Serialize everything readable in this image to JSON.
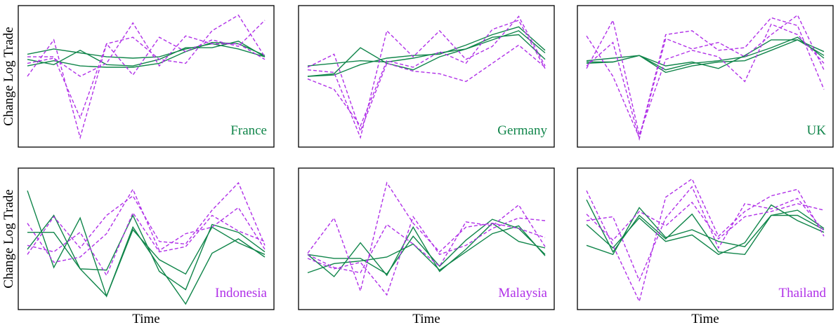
{
  "colors": {
    "solid": "#10854a",
    "dashed": "#b030e8",
    "frame": "#000000"
  },
  "chart_data": [
    {
      "type": "line",
      "country": "France",
      "label_color": "#10854a",
      "x": [
        0,
        1,
        2,
        3,
        4,
        5,
        6,
        7,
        8,
        9
      ],
      "ylabel": "Change Log Trade",
      "xlabel": "",
      "series": [
        {
          "style": "solid",
          "values": [
            0.58,
            0.62,
            0.58,
            0.57,
            0.57,
            0.6,
            0.69,
            0.76,
            0.75,
            0.66
          ]
        },
        {
          "style": "solid",
          "values": [
            0.63,
            0.59,
            0.7,
            0.59,
            0.58,
            0.63,
            0.72,
            0.72,
            0.77,
            0.65
          ]
        },
        {
          "style": "solid",
          "values": [
            0.67,
            0.71,
            0.68,
            0.65,
            0.64,
            0.65,
            0.71,
            0.75,
            0.71,
            0.65
          ]
        },
        {
          "style": "dashed",
          "values": [
            0.5,
            0.78,
            0.03,
            0.75,
            0.8,
            0.63,
            0.6,
            0.85,
            0.97,
            0.65
          ]
        },
        {
          "style": "dashed",
          "values": [
            0.6,
            0.64,
            0.5,
            0.6,
            0.91,
            0.58,
            0.81,
            0.75,
            0.75,
            0.63
          ]
        },
        {
          "style": "dashed",
          "values": [
            0.65,
            0.65,
            0.18,
            0.75,
            0.51,
            0.8,
            0.69,
            0.78,
            0.73,
            0.93
          ]
        }
      ]
    },
    {
      "type": "line",
      "country": "Germany",
      "label_color": "#10854a",
      "x": [
        0,
        1,
        2,
        3,
        4,
        5,
        6,
        7,
        8,
        9
      ],
      "ylabel": "",
      "xlabel": "",
      "series": [
        {
          "style": "solid",
          "values": [
            0.5,
            0.52,
            0.72,
            0.6,
            0.55,
            0.65,
            0.71,
            0.78,
            0.85,
            0.68
          ]
        },
        {
          "style": "solid",
          "values": [
            0.58,
            0.6,
            0.62,
            0.61,
            0.64,
            0.68,
            0.71,
            0.8,
            0.82,
            0.63
          ]
        },
        {
          "style": "solid",
          "values": [
            0.5,
            0.51,
            0.59,
            0.64,
            0.66,
            0.67,
            0.74,
            0.82,
            0.88,
            0.7
          ]
        },
        {
          "style": "dashed",
          "values": [
            0.55,
            0.53,
            0.03,
            0.85,
            0.65,
            0.85,
            0.63,
            0.73,
            0.96,
            0.58
          ]
        },
        {
          "style": "dashed",
          "values": [
            0.57,
            0.67,
            0.08,
            0.6,
            0.54,
            0.52,
            0.46,
            0.6,
            0.74,
            0.57
          ]
        },
        {
          "style": "dashed",
          "values": [
            0.48,
            0.4,
            0.12,
            0.62,
            0.57,
            0.69,
            0.6,
            0.86,
            0.93,
            0.56
          ]
        }
      ]
    },
    {
      "type": "line",
      "country": "UK",
      "label_color": "#10854a",
      "x": [
        0,
        1,
        2,
        3,
        4,
        5,
        6,
        7,
        8,
        9
      ],
      "ylabel": "",
      "xlabel": "",
      "series": [
        {
          "style": "solid",
          "values": [
            0.6,
            0.61,
            0.66,
            0.58,
            0.61,
            0.56,
            0.66,
            0.78,
            0.78,
            0.69
          ]
        },
        {
          "style": "solid",
          "values": [
            0.61,
            0.61,
            0.66,
            0.53,
            0.58,
            0.61,
            0.62,
            0.7,
            0.78,
            0.66
          ]
        },
        {
          "style": "solid",
          "values": [
            0.62,
            0.64,
            0.66,
            0.55,
            0.6,
            0.62,
            0.65,
            0.72,
            0.8,
            0.64
          ]
        },
        {
          "style": "dashed",
          "values": [
            0.81,
            0.5,
            0.03,
            0.82,
            0.85,
            0.7,
            0.72,
            0.95,
            0.89,
            0.4
          ]
        },
        {
          "style": "dashed",
          "values": [
            0.56,
            0.93,
            0.05,
            0.63,
            0.7,
            0.65,
            0.46,
            0.9,
            0.82,
            0.6
          ]
        },
        {
          "style": "dashed",
          "values": [
            0.58,
            0.76,
            0.02,
            0.79,
            0.71,
            0.76,
            0.65,
            0.82,
            0.97,
            0.55
          ]
        }
      ]
    },
    {
      "type": "line",
      "country": "Indonesia",
      "label_color": "#b030e8",
      "x": [
        0,
        1,
        2,
        3,
        4,
        5,
        6,
        7,
        8,
        9
      ],
      "ylabel": "Change Log Trade",
      "xlabel": "Time",
      "series": [
        {
          "style": "solid",
          "values": [
            0.87,
            0.28,
            0.66,
            0.06,
            0.59,
            0.29,
            0.0,
            0.39,
            0.5,
            0.36
          ]
        },
        {
          "style": "solid",
          "values": [
            0.42,
            0.68,
            0.27,
            0.26,
            0.68,
            0.25,
            0.11,
            0.61,
            0.55,
            0.4
          ]
        },
        {
          "style": "solid",
          "values": [
            0.55,
            0.55,
            0.27,
            0.06,
            0.57,
            0.34,
            0.23,
            0.59,
            0.47,
            0.38
          ]
        },
        {
          "style": "dashed",
          "values": [
            0.38,
            0.67,
            0.43,
            0.68,
            0.83,
            0.48,
            0.46,
            0.72,
            0.93,
            0.45
          ]
        },
        {
          "style": "dashed",
          "values": [
            0.62,
            0.32,
            0.36,
            0.54,
            0.88,
            0.41,
            0.54,
            0.59,
            0.74,
            0.42
          ]
        },
        {
          "style": "dashed",
          "values": [
            0.45,
            0.4,
            0.55,
            0.22,
            0.7,
            0.4,
            0.44,
            0.68,
            0.56,
            0.48
          ]
        }
      ]
    },
    {
      "type": "line",
      "country": "Malaysia",
      "label_color": "#b030e8",
      "x": [
        0,
        1,
        2,
        3,
        4,
        5,
        6,
        7,
        8,
        9
      ],
      "ylabel": "",
      "xlabel": "Time",
      "series": [
        {
          "style": "solid",
          "values": [
            0.38,
            0.21,
            0.47,
            0.22,
            0.59,
            0.25,
            0.42,
            0.62,
            0.48,
            0.43
          ]
        },
        {
          "style": "solid",
          "values": [
            0.24,
            0.31,
            0.33,
            0.36,
            0.46,
            0.26,
            0.4,
            0.54,
            0.6,
            0.37
          ]
        },
        {
          "style": "solid",
          "values": [
            0.38,
            0.35,
            0.35,
            0.23,
            0.52,
            0.29,
            0.49,
            0.65,
            0.58,
            0.38
          ]
        },
        {
          "style": "dashed",
          "values": [
            0.39,
            0.66,
            0.1,
            0.93,
            0.62,
            0.4,
            0.59,
            0.62,
            0.58,
            0.51
          ]
        },
        {
          "style": "dashed",
          "values": [
            0.35,
            0.27,
            0.32,
            0.07,
            0.67,
            0.38,
            0.45,
            0.58,
            0.66,
            0.64
          ]
        },
        {
          "style": "dashed",
          "values": [
            0.38,
            0.28,
            0.24,
            0.61,
            0.46,
            0.29,
            0.63,
            0.6,
            0.76,
            0.44
          ]
        }
      ]
    },
    {
      "type": "line",
      "country": "Thailand",
      "label_color": "#b030e8",
      "x": [
        0,
        1,
        2,
        3,
        4,
        5,
        6,
        7,
        8,
        9
      ],
      "ylabel": "",
      "xlabel": "Time",
      "series": [
        {
          "style": "solid",
          "values": [
            0.8,
            0.4,
            0.68,
            0.5,
            0.69,
            0.4,
            0.38,
            0.68,
            0.72,
            0.58
          ]
        },
        {
          "style": "solid",
          "values": [
            0.61,
            0.43,
            0.66,
            0.48,
            0.53,
            0.38,
            0.47,
            0.76,
            0.64,
            0.55
          ]
        },
        {
          "style": "solid",
          "values": [
            0.45,
            0.38,
            0.74,
            0.51,
            0.57,
            0.48,
            0.44,
            0.68,
            0.68,
            0.57
          ]
        },
        {
          "style": "dashed",
          "values": [
            0.87,
            0.45,
            0.02,
            0.82,
            0.96,
            0.52,
            0.71,
            0.83,
            0.88,
            0.52
          ]
        },
        {
          "style": "dashed",
          "values": [
            0.64,
            0.67,
            0.18,
            0.66,
            0.9,
            0.43,
            0.77,
            0.73,
            0.81,
            0.56
          ]
        },
        {
          "style": "dashed",
          "values": [
            0.69,
            0.49,
            0.71,
            0.6,
            0.78,
            0.5,
            0.67,
            0.71,
            0.77,
            0.72
          ]
        }
      ]
    }
  ]
}
